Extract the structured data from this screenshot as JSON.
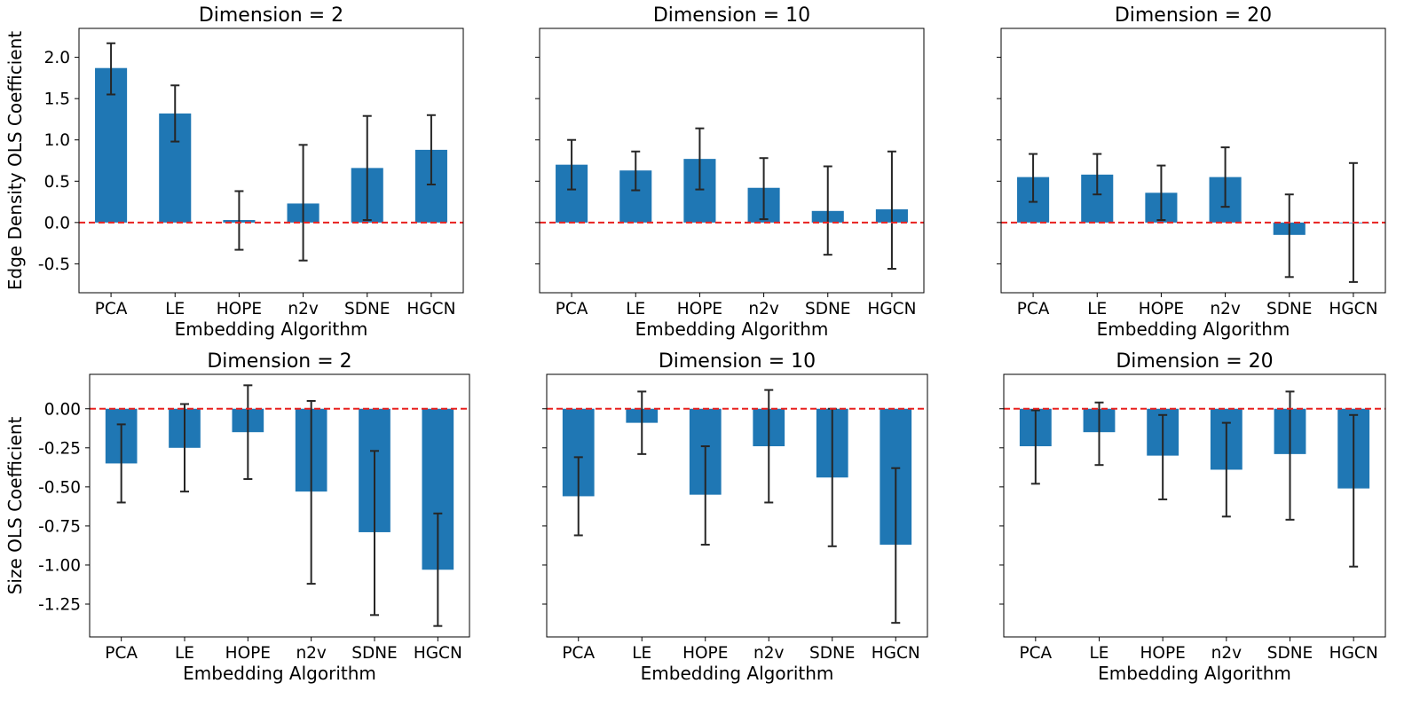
{
  "colors": {
    "bar": "#1f77b4",
    "error_bar": "#262626",
    "zero_line": "#e8211f"
  },
  "chart_data": [
    {
      "type": "bar",
      "title": "Dimension = 2",
      "xlabel": "Embedding Algorithm",
      "ylabel": "Edge Density OLS Coefficient",
      "categories": [
        "PCA",
        "LE",
        "HOPE",
        "n2v",
        "SDNE",
        "HGCN"
      ],
      "values": [
        1.87,
        1.32,
        0.03,
        0.23,
        0.66,
        0.88
      ],
      "error_low": [
        1.55,
        0.98,
        -0.33,
        -0.46,
        0.03,
        0.46
      ],
      "error_high": [
        2.17,
        1.66,
        0.38,
        0.94,
        1.29,
        1.3
      ],
      "ylim": [
        -0.85,
        2.35
      ],
      "yticks": [
        "-0.5",
        "0.0",
        "0.5",
        "1.0",
        "1.5",
        "2.0"
      ],
      "reference_line": 0
    },
    {
      "type": "bar",
      "title": "Dimension = 10",
      "xlabel": "Embedding Algorithm",
      "ylabel": "",
      "categories": [
        "PCA",
        "LE",
        "HOPE",
        "n2v",
        "SDNE",
        "HGCN"
      ],
      "values": [
        0.7,
        0.63,
        0.77,
        0.42,
        0.14,
        0.16
      ],
      "error_low": [
        0.4,
        0.39,
        0.4,
        0.04,
        -0.39,
        -0.56
      ],
      "error_high": [
        1.0,
        0.86,
        1.14,
        0.78,
        0.68,
        0.86
      ],
      "ylim": [
        -0.85,
        2.35
      ],
      "yticks": [],
      "reference_line": 0
    },
    {
      "type": "bar",
      "title": "Dimension = 20",
      "xlabel": "Embedding Algorithm",
      "ylabel": "",
      "categories": [
        "PCA",
        "LE",
        "HOPE",
        "n2v",
        "SDNE",
        "HGCN"
      ],
      "values": [
        0.55,
        0.58,
        0.36,
        0.55,
        -0.15,
        0.0
      ],
      "error_low": [
        0.25,
        0.34,
        0.03,
        0.19,
        -0.66,
        -0.72
      ],
      "error_high": [
        0.83,
        0.83,
        0.69,
        0.91,
        0.34,
        0.72
      ],
      "ylim": [
        -0.85,
        2.35
      ],
      "yticks": [],
      "reference_line": 0
    },
    {
      "type": "bar",
      "title": "Dimension = 2",
      "xlabel": "Embedding Algorithm",
      "ylabel": "Size OLS Coefficient",
      "categories": [
        "PCA",
        "LE",
        "HOPE",
        "n2v",
        "SDNE",
        "HGCN"
      ],
      "values": [
        -0.35,
        -0.25,
        -0.15,
        -0.53,
        -0.79,
        -1.03
      ],
      "error_low": [
        -0.6,
        -0.53,
        -0.45,
        -1.12,
        -1.32,
        -1.39
      ],
      "error_high": [
        -0.1,
        0.03,
        0.15,
        0.05,
        -0.27,
        -0.67
      ],
      "ylim": [
        -1.46,
        0.22
      ],
      "yticks": [
        "-1.25",
        "-1.00",
        "-0.75",
        "-0.50",
        "-0.25",
        "0.00"
      ],
      "reference_line": 0
    },
    {
      "type": "bar",
      "title": "Dimension = 10",
      "xlabel": "Embedding Algorithm",
      "ylabel": "",
      "categories": [
        "PCA",
        "LE",
        "HOPE",
        "n2v",
        "SDNE",
        "HGCN"
      ],
      "values": [
        -0.56,
        -0.09,
        -0.55,
        -0.24,
        -0.44,
        -0.87
      ],
      "error_low": [
        -0.81,
        -0.29,
        -0.87,
        -0.6,
        -0.88,
        -1.37
      ],
      "error_high": [
        -0.31,
        0.11,
        -0.24,
        0.12,
        0.0,
        -0.38
      ],
      "ylim": [
        -1.46,
        0.22
      ],
      "yticks": [],
      "reference_line": 0
    },
    {
      "type": "bar",
      "title": "Dimension = 20",
      "xlabel": "Embedding Algorithm",
      "ylabel": "",
      "categories": [
        "PCA",
        "LE",
        "HOPE",
        "n2v",
        "SDNE",
        "HGCN"
      ],
      "values": [
        -0.24,
        -0.15,
        -0.3,
        -0.39,
        -0.29,
        -0.51
      ],
      "error_low": [
        -0.48,
        -0.36,
        -0.58,
        -0.69,
        -0.71,
        -1.01
      ],
      "error_high": [
        -0.01,
        0.04,
        -0.04,
        -0.09,
        0.11,
        -0.04
      ],
      "ylim": [
        -1.46,
        0.22
      ],
      "yticks": [],
      "reference_line": 0
    }
  ]
}
